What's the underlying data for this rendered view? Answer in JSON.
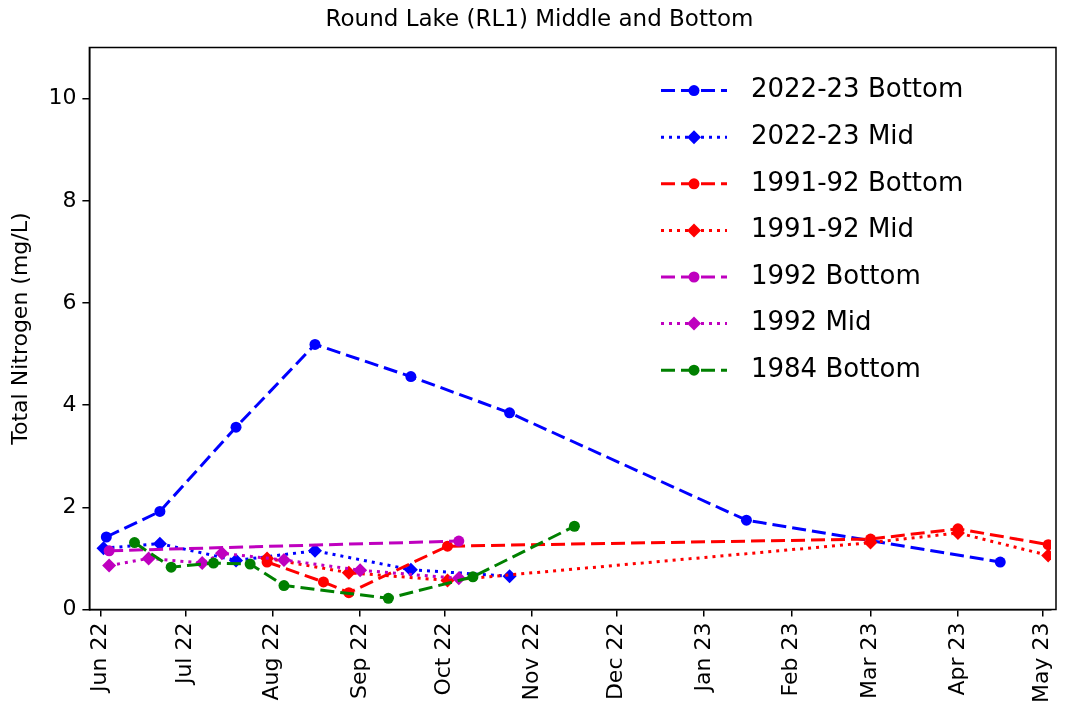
{
  "chart_data": {
    "type": "line",
    "title": "Round Lake (RL1) Middle and Bottom",
    "ylabel": "Total Nitrogen (mg/L)",
    "xlim": [
      "2022-05-28",
      "2023-05-04"
    ],
    "xticks": [
      {
        "value": "2022-06-01",
        "label": "Jun 22"
      },
      {
        "value": "2022-07-01",
        "label": "Jul 22"
      },
      {
        "value": "2022-08-01",
        "label": "Aug 22"
      },
      {
        "value": "2022-09-01",
        "label": "Sep 22"
      },
      {
        "value": "2022-10-01",
        "label": "Oct 22"
      },
      {
        "value": "2022-11-01",
        "label": "Nov 22"
      },
      {
        "value": "2022-12-01",
        "label": "Dec 22"
      },
      {
        "value": "2023-01-01",
        "label": "Jan 23"
      },
      {
        "value": "2023-02-01",
        "label": "Feb 23"
      },
      {
        "value": "2023-03-01",
        "label": "Mar 23"
      },
      {
        "value": "2023-04-01",
        "label": "Apr 23"
      },
      {
        "value": "2023-05-01",
        "label": "May 23"
      }
    ],
    "ylim": [
      0,
      11
    ],
    "yticks": [
      0,
      2,
      4,
      6,
      8,
      10
    ],
    "legend": "top right",
    "series": [
      {
        "name": "2022-23 Bottom",
        "color": "#0000ff",
        "marker": "circle",
        "line_style": "dashed",
        "x": [
          "2022-06-03",
          "2022-06-22",
          "2022-07-19",
          "2022-08-16",
          "2022-09-19",
          "2022-10-24",
          "2023-01-16",
          "2023-04-16"
        ],
        "values": [
          1.42,
          1.92,
          3.57,
          5.19,
          4.56,
          3.85,
          1.75,
          0.93
        ]
      },
      {
        "name": "2022-23 Mid",
        "color": "#0000ff",
        "marker": "diamond",
        "line_style": "dotted",
        "x": [
          "2022-06-02",
          "2022-06-22",
          "2022-07-19",
          "2022-08-16",
          "2022-09-19",
          "2022-10-24"
        ],
        "values": [
          1.2,
          1.29,
          0.96,
          1.15,
          0.78,
          0.65
        ]
      },
      {
        "name": "1991-92 Bottom",
        "color": "#ff0000",
        "marker": "circle",
        "line_style": "dashed",
        "x": [
          "2022-07-30",
          "2022-08-19",
          "2022-08-28",
          "2022-10-02",
          "2023-03-01",
          "2023-04-01",
          "2023-05-03"
        ],
        "values": [
          0.93,
          0.54,
          0.33,
          1.24,
          1.38,
          1.58,
          1.27
        ]
      },
      {
        "name": "1991-92 Mid",
        "color": "#ff0000",
        "marker": "diamond",
        "line_style": "dotted",
        "x": [
          "2022-07-30",
          "2022-08-28",
          "2022-10-02",
          "2023-03-01",
          "2023-04-01",
          "2023-05-03"
        ],
        "values": [
          1.0,
          0.72,
          0.57,
          1.31,
          1.5,
          1.06
        ]
      },
      {
        "name": "1992 Bottom",
        "color": "#bf00bf",
        "marker": "circle",
        "line_style": "dashed",
        "x": [
          "2022-06-04",
          "2022-10-06"
        ],
        "values": [
          1.15,
          1.34
        ]
      },
      {
        "name": "1992 Mid",
        "color": "#bf00bf",
        "marker": "diamond",
        "line_style": "dotted",
        "x": [
          "2022-06-04",
          "2022-06-18",
          "2022-07-07",
          "2022-07-14",
          "2022-08-05",
          "2022-09-01",
          "2022-10-06"
        ],
        "values": [
          0.86,
          1.0,
          0.91,
          1.1,
          0.97,
          0.77,
          0.61
        ]
      },
      {
        "name": "1984 Bottom",
        "color": "#008000",
        "marker": "circle",
        "line_style": "dashed",
        "x": [
          "2022-06-13",
          "2022-06-26",
          "2022-07-11",
          "2022-07-24",
          "2022-08-05",
          "2022-09-11",
          "2022-10-11",
          "2022-11-16"
        ],
        "values": [
          1.31,
          0.83,
          0.91,
          0.89,
          0.47,
          0.22,
          0.64,
          1.63
        ]
      }
    ]
  }
}
